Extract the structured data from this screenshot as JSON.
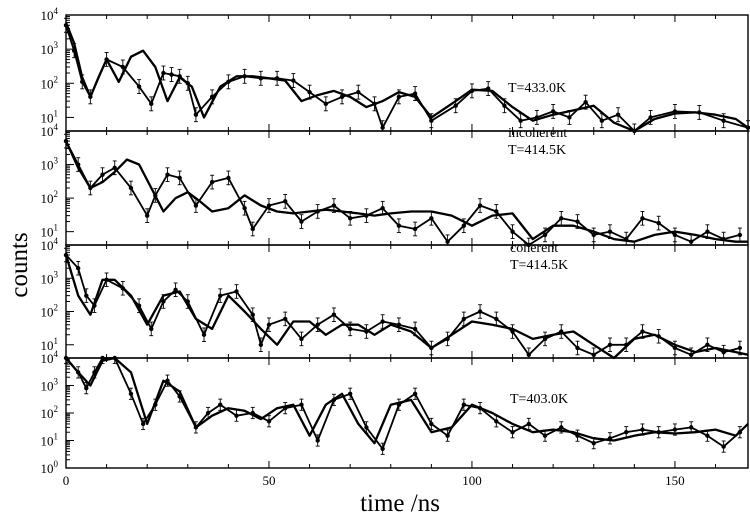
{
  "chart_data": {
    "type": "line",
    "xlabel": "time /ns",
    "ylabel": "counts",
    "xlim": [
      0,
      168
    ],
    "x_ticks": [
      0,
      50,
      100,
      150
    ],
    "y_scale": "log",
    "panels": [
      {
        "annotation": [
          "T=433.0K"
        ],
        "ylim": [
          4,
          10000
        ],
        "y_ticks": [
          {
            "base": "10",
            "exp": "4"
          },
          {
            "base": "10",
            "exp": "3"
          },
          {
            "base": "10",
            "exp": "2"
          },
          {
            "base": "10",
            "exp": "1"
          }
        ],
        "series": [
          {
            "style": "points",
            "x": [
              0,
              2,
              4,
              6,
              10,
              14,
              18,
              21,
              24,
              26,
              28,
              30,
              32,
              36,
              40,
              44,
              48,
              52,
              56,
              60,
              64,
              68,
              72,
              76,
              78,
              82,
              86,
              90,
              96,
              100,
              104,
              108,
              112,
              116,
              120,
              124,
              128,
              132,
              136,
              140,
              144,
              150,
              156,
              162,
              168
            ],
            "y": [
              5000,
              900,
              110,
              40,
              500,
              300,
              80,
              25,
              200,
              180,
              160,
              100,
              12,
              40,
              110,
              160,
              140,
              140,
              120,
              55,
              25,
              40,
              55,
              25,
              5,
              40,
              50,
              8,
              22,
              60,
              70,
              22,
              8,
              10,
              15,
              10,
              28,
              8,
              12,
              4,
              10,
              15,
              14,
              8,
              5
            ]
          },
          {
            "style": "line",
            "x": [
              0,
              2,
              4,
              6,
              8,
              10,
              13,
              16,
              19,
              22,
              25,
              28,
              31,
              34,
              38,
              42,
              46,
              50,
              54,
              58,
              62,
              66,
              70,
              74,
              78,
              82,
              86,
              90,
              95,
              100,
              105,
              110,
              115,
              120,
              125,
              130,
              135,
              140,
              145,
              150,
              155,
              160,
              165,
              168
            ],
            "y": [
              6000,
              1500,
              150,
              40,
              150,
              500,
              110,
              600,
              900,
              300,
              30,
              150,
              80,
              10,
              80,
              160,
              160,
              140,
              120,
              30,
              45,
              60,
              40,
              20,
              30,
              55,
              40,
              10,
              25,
              65,
              60,
              20,
              8,
              12,
              16,
              22,
              7,
              4,
              9,
              13,
              14,
              12,
              9,
              5
            ]
          }
        ]
      },
      {
        "annotation": [
          "incoherent",
          "T=414.5K"
        ],
        "ylim": [
          4,
          10000
        ],
        "y_ticks": [
          {
            "base": "10",
            "exp": "4"
          },
          {
            "base": "10",
            "exp": "3"
          },
          {
            "base": "10",
            "exp": "2"
          },
          {
            "base": "10",
            "exp": "1"
          }
        ],
        "series": [
          {
            "style": "points",
            "x": [
              0,
              3,
              6,
              9,
              12,
              16,
              20,
              22,
              25,
              28,
              32,
              36,
              40,
              44,
              46,
              50,
              54,
              58,
              62,
              66,
              70,
              74,
              78,
              82,
              86,
              90,
              94,
              98,
              102,
              106,
              110,
              114,
              118,
              122,
              126,
              130,
              134,
              138,
              142,
              146,
              150,
              154,
              158,
              162,
              166
            ],
            "y": [
              5000,
              1000,
              200,
              500,
              800,
              200,
              30,
              120,
              500,
              400,
              60,
              300,
              400,
              50,
              12,
              60,
              80,
              20,
              40,
              60,
              25,
              30,
              50,
              15,
              12,
              25,
              5,
              15,
              60,
              40,
              10,
              4,
              8,
              25,
              20,
              8,
              10,
              6,
              25,
              18,
              8,
              5,
              10,
              6,
              8
            ]
          },
          {
            "style": "line",
            "x": [
              0,
              3,
              6,
              9,
              12,
              15,
              18,
              21,
              24,
              27,
              30,
              33,
              36,
              40,
              44,
              48,
              52,
              56,
              60,
              64,
              68,
              72,
              76,
              80,
              85,
              90,
              95,
              100,
              105,
              110,
              115,
              120,
              125,
              130,
              135,
              140,
              145,
              150,
              155,
              160,
              165,
              168
            ],
            "y": [
              5000,
              800,
              200,
              300,
              600,
              1400,
              1000,
              200,
              40,
              100,
              150,
              80,
              40,
              50,
              120,
              60,
              40,
              35,
              40,
              45,
              40,
              35,
              30,
              35,
              40,
              40,
              30,
              15,
              30,
              35,
              6,
              15,
              15,
              10,
              6,
              5,
              8,
              10,
              8,
              6,
              5,
              5
            ]
          }
        ]
      },
      {
        "annotation": [
          "coherent",
          "T=414.5K"
        ],
        "ylim": [
          4,
          10000
        ],
        "y_ticks": [
          {
            "base": "10",
            "exp": "4"
          },
          {
            "base": "10",
            "exp": "3"
          },
          {
            "base": "10",
            "exp": "2"
          },
          {
            "base": "10",
            "exp": "1"
          }
        ],
        "series": [
          {
            "style": "points",
            "x": [
              0,
              3,
              5,
              7,
              10,
              14,
              18,
              21,
              24,
              27,
              30,
              34,
              38,
              42,
              46,
              48,
              50,
              54,
              58,
              62,
              66,
              70,
              74,
              78,
              82,
              86,
              90,
              94,
              98,
              102,
              106,
              110,
              114,
              118,
              122,
              126,
              130,
              134,
              138,
              142,
              146,
              150,
              154,
              158,
              162,
              166
            ],
            "y": [
              5000,
              2000,
              300,
              150,
              900,
              500,
              150,
              30,
              200,
              450,
              200,
              20,
              300,
              400,
              80,
              10,
              40,
              60,
              15,
              40,
              80,
              30,
              25,
              50,
              40,
              30,
              8,
              15,
              60,
              100,
              60,
              25,
              5,
              15,
              25,
              8,
              5,
              10,
              10,
              25,
              18,
              8,
              5,
              10,
              6,
              8
            ]
          },
          {
            "style": "line",
            "x": [
              0,
              3,
              6,
              9,
              12,
              16,
              20,
              24,
              28,
              32,
              36,
              40,
              44,
              48,
              52,
              56,
              60,
              64,
              68,
              72,
              76,
              80,
              85,
              90,
              95,
              100,
              105,
              110,
              115,
              120,
              125,
              130,
              135,
              140,
              145,
              150,
              155,
              160,
              165,
              168
            ],
            "y": [
              5000,
              300,
              80,
              900,
              900,
              300,
              40,
              300,
              400,
              60,
              30,
              300,
              100,
              30,
              10,
              50,
              50,
              20,
              40,
              40,
              20,
              40,
              25,
              8,
              20,
              50,
              40,
              30,
              15,
              20,
              25,
              10,
              4,
              15,
              20,
              10,
              6,
              8,
              6,
              5
            ]
          }
        ]
      },
      {
        "annotation": [
          "T=403.0K"
        ],
        "ylim": [
          1,
          10000
        ],
        "y_ticks": [
          {
            "base": "10",
            "exp": "4"
          },
          {
            "base": "10",
            "exp": "3"
          },
          {
            "base": "10",
            "exp": "2"
          },
          {
            "base": "10",
            "exp": "1"
          },
          {
            "base": "10",
            "exp": "0"
          }
        ],
        "series": [
          {
            "style": "points",
            "x": [
              0,
              3,
              5,
              7,
              9,
              12,
              16,
              19,
              22,
              25,
              28,
              32,
              35,
              38,
              42,
              46,
              50,
              54,
              58,
              62,
              66,
              70,
              74,
              78,
              82,
              86,
              90,
              94,
              98,
              102,
              106,
              110,
              114,
              118,
              122,
              126,
              130,
              134,
              138,
              142,
              146,
              150,
              154,
              158,
              162,
              166
            ],
            "y": [
              10000,
              3000,
              800,
              3000,
              10000,
              10000,
              500,
              40,
              200,
              1500,
              400,
              30,
              100,
              200,
              80,
              100,
              50,
              150,
              200,
              10,
              300,
              500,
              30,
              5,
              200,
              500,
              40,
              15,
              200,
              150,
              50,
              20,
              40,
              15,
              30,
              15,
              8,
              12,
              20,
              25,
              20,
              25,
              30,
              15,
              6,
              20
            ]
          },
          {
            "style": "line",
            "x": [
              0,
              3,
              6,
              9,
              12,
              16,
              20,
              24,
              28,
              32,
              36,
              40,
              44,
              48,
              52,
              56,
              60,
              64,
              68,
              72,
              76,
              80,
              85,
              90,
              95,
              100,
              105,
              110,
              115,
              120,
              125,
              130,
              135,
              140,
              145,
              150,
              155,
              160,
              165,
              168
            ],
            "y": [
              10000,
              3000,
              1000,
              8000,
              10000,
              3000,
              40,
              1500,
              600,
              30,
              80,
              150,
              120,
              60,
              150,
              200,
              15,
              200,
              500,
              40,
              8,
              200,
              300,
              20,
              30,
              200,
              100,
              40,
              20,
              25,
              20,
              12,
              10,
              15,
              20,
              18,
              20,
              25,
              15,
              40
            ]
          }
        ]
      }
    ]
  }
}
